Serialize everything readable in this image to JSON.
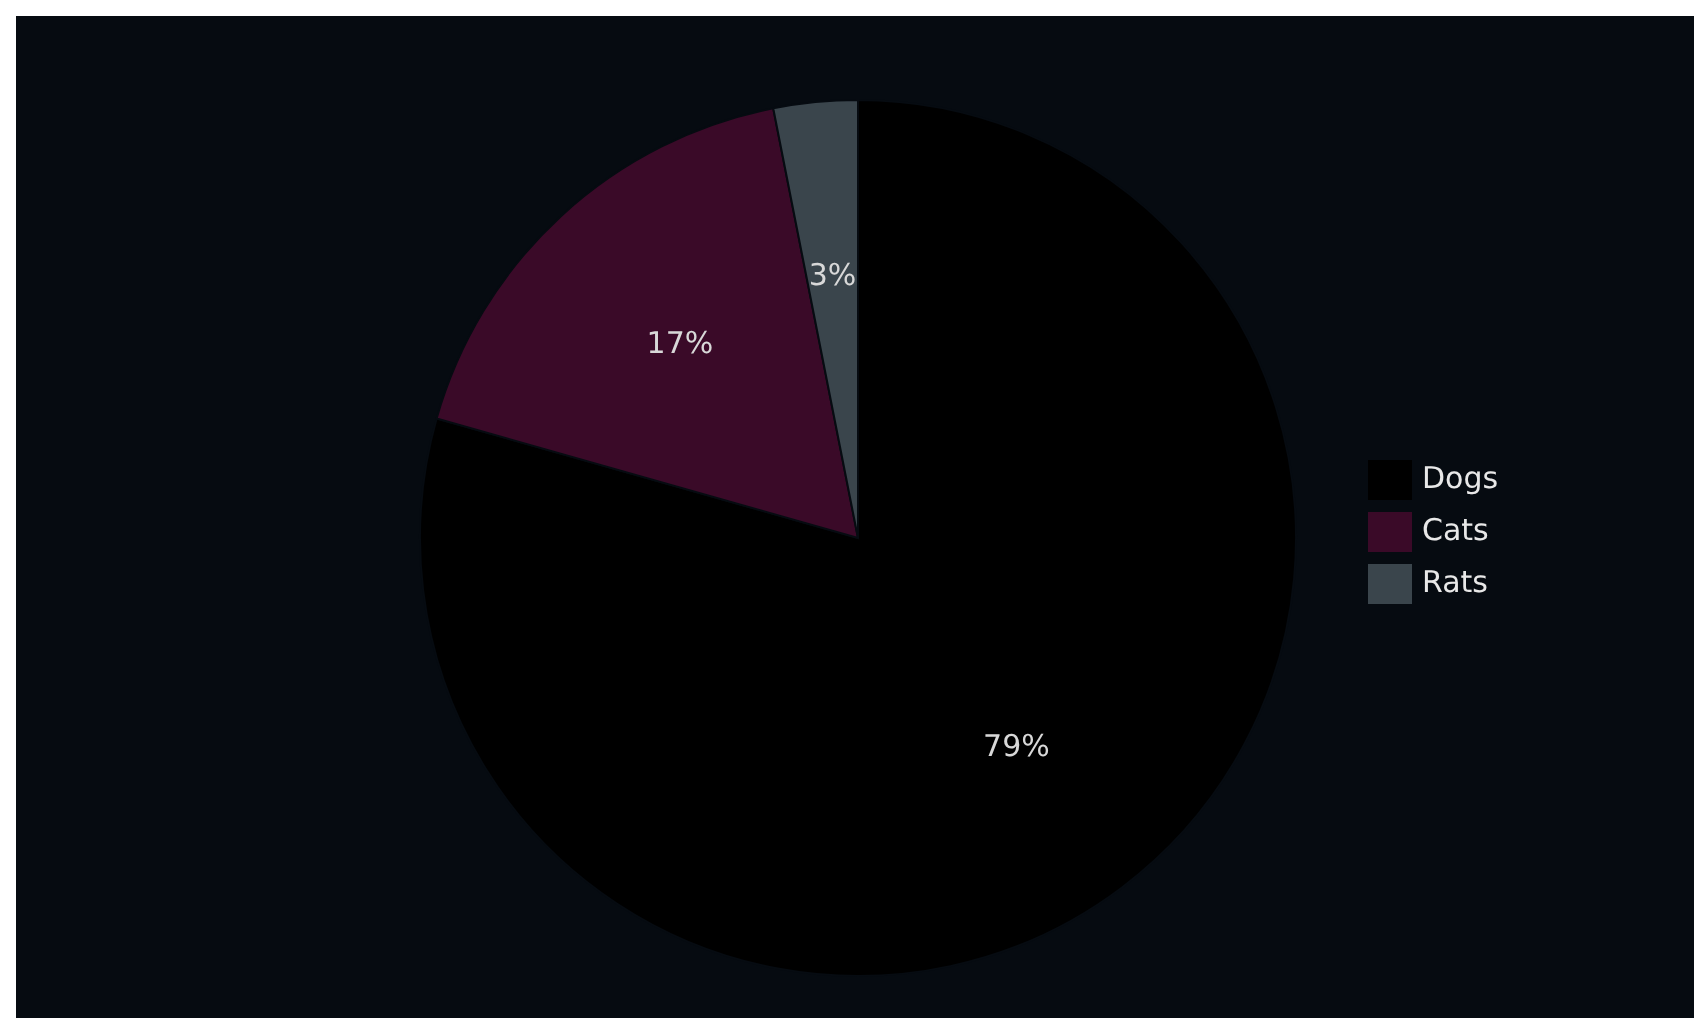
{
  "chart_data": {
    "type": "pie",
    "categories": [
      "Dogs",
      "Cats",
      "Rats"
    ],
    "values": [
      79.4,
      17.5,
      3.1
    ],
    "colors": [
      "#000000",
      "#3a0a28",
      "#3a454c"
    ],
    "value_labels": [
      "79%",
      "17%",
      "3%"
    ],
    "legend": "right"
  }
}
